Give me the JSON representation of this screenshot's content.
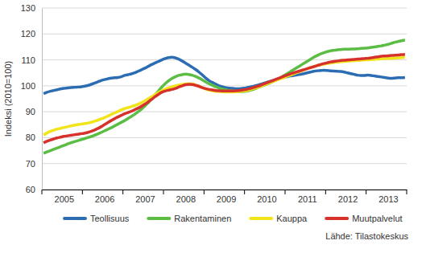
{
  "chart_data": {
    "type": "line",
    "y_label": "Indeksi (2010=100)",
    "source": "Lähde: Tilastokeskus",
    "categories": [
      null,
      null,
      null,
      null,
      null,
      null,
      "2005",
      null,
      null,
      null,
      null,
      null,
      null,
      null,
      null,
      null,
      null,
      null,
      "2006",
      null,
      null,
      null,
      null,
      null,
      null,
      null,
      null,
      null,
      null,
      null,
      "2007",
      null,
      null,
      null,
      null,
      null,
      null,
      null,
      null,
      null,
      null,
      null,
      "2008",
      null,
      null,
      null,
      null,
      null,
      null,
      null,
      null,
      null,
      null,
      null,
      "2009",
      null,
      null,
      null,
      null,
      null,
      null,
      null,
      null,
      null,
      null,
      null,
      "2010",
      null,
      null,
      null,
      null,
      null,
      null,
      null,
      null,
      null,
      null,
      null,
      "2011",
      null,
      null,
      null,
      null,
      null,
      null,
      null,
      null,
      null,
      null,
      null,
      "2012",
      null,
      null,
      null,
      null,
      null,
      null,
      null,
      null,
      null,
      null,
      null,
      "2013",
      null,
      null,
      null,
      null,
      null
    ],
    "ylim": [
      60,
      130
    ],
    "yticks": [
      60,
      70,
      80,
      90,
      100,
      110,
      120,
      130
    ],
    "grid": true,
    "legend": "bottom",
    "series": [
      {
        "name": "Teollisuus",
        "color": "#2b6cb3",
        "values": [
          97.0,
          97.5,
          97.9,
          98.2,
          98.5,
          98.8,
          99.0,
          99.2,
          99.3,
          99.4,
          99.5,
          99.6,
          99.8,
          100.1,
          100.5,
          101.0,
          101.5,
          102.0,
          102.4,
          102.7,
          103.0,
          103.1,
          103.2,
          103.5,
          104.0,
          104.3,
          104.6,
          105.0,
          105.6,
          106.2,
          106.8,
          107.5,
          108.2,
          108.8,
          109.4,
          110.0,
          110.5,
          110.9,
          111.0,
          110.8,
          110.3,
          109.6,
          108.8,
          108.0,
          107.2,
          106.3,
          105.3,
          104.2,
          103.0,
          102.0,
          101.3,
          100.6,
          100.0,
          99.6,
          99.3,
          99.1,
          99.0,
          98.9,
          98.9,
          99.0,
          99.2,
          99.5,
          99.8,
          100.1,
          100.5,
          100.9,
          101.3,
          101.7,
          102.1,
          102.5,
          102.9,
          103.2,
          103.5,
          103.8,
          104.0,
          104.2,
          104.4,
          104.7,
          105.0,
          105.3,
          105.6,
          105.8,
          105.9,
          106.0,
          105.9,
          105.8,
          105.7,
          105.6,
          105.5,
          105.3,
          105.0,
          104.7,
          104.4,
          104.1,
          104.0,
          104.0,
          104.1,
          104.0,
          103.8,
          103.6,
          103.4,
          103.2,
          103.0,
          102.9,
          103.0,
          103.1,
          103.1,
          103.2
        ]
      },
      {
        "name": "Rakentaminen",
        "color": "#5cbd44",
        "values": [
          74.0,
          74.5,
          75.0,
          75.5,
          76.0,
          76.5,
          77.0,
          77.5,
          78.0,
          78.4,
          78.8,
          79.2,
          79.6,
          80.0,
          80.4,
          80.9,
          81.4,
          82.0,
          82.6,
          83.2,
          83.8,
          84.5,
          85.2,
          85.9,
          86.6,
          87.4,
          88.2,
          89.0,
          90.0,
          91.0,
          92.2,
          93.5,
          95.0,
          96.5,
          98.0,
          99.5,
          100.8,
          101.9,
          102.8,
          103.5,
          104.0,
          104.3,
          104.5,
          104.4,
          104.1,
          103.6,
          103.0,
          102.3,
          101.5,
          100.8,
          100.2,
          99.6,
          99.1,
          98.7,
          98.4,
          98.2,
          98.0,
          97.9,
          97.8,
          97.8,
          97.9,
          98.2,
          98.6,
          99.1,
          99.6,
          100.1,
          100.6,
          101.1,
          101.7,
          102.3,
          103.0,
          103.8,
          104.6,
          105.4,
          106.2,
          107.0,
          107.8,
          108.6,
          109.4,
          110.2,
          111.0,
          111.7,
          112.3,
          112.8,
          113.2,
          113.5,
          113.7,
          113.9,
          114.0,
          114.1,
          114.1,
          114.2,
          114.2,
          114.3,
          114.4,
          114.5,
          114.6,
          114.8,
          115.0,
          115.2,
          115.4,
          115.7,
          116.0,
          116.4,
          116.8,
          117.1,
          117.4,
          117.6
        ]
      },
      {
        "name": "Kauppa",
        "color": "#f2e41a",
        "values": [
          81.0,
          81.8,
          82.4,
          82.9,
          83.3,
          83.6,
          83.9,
          84.2,
          84.5,
          84.8,
          85.0,
          85.2,
          85.4,
          85.6,
          85.9,
          86.3,
          86.7,
          87.2,
          87.7,
          88.3,
          88.9,
          89.5,
          90.1,
          90.7,
          91.2,
          91.6,
          92.0,
          92.4,
          92.9,
          93.5,
          94.2,
          95.0,
          95.8,
          96.6,
          97.4,
          98.1,
          98.7,
          99.2,
          99.6,
          100.0,
          100.3,
          100.5,
          100.7,
          100.8,
          100.7,
          100.4,
          99.9,
          99.3,
          98.8,
          98.4,
          98.1,
          97.9,
          97.8,
          97.7,
          97.6,
          97.6,
          97.6,
          97.7,
          97.8,
          98.0,
          98.2,
          98.5,
          98.9,
          99.3,
          99.7,
          100.2,
          100.7,
          101.2,
          101.7,
          102.2,
          102.7,
          103.1,
          103.6,
          104.1,
          104.6,
          105.1,
          105.6,
          106.1,
          106.6,
          107.0,
          107.4,
          107.8,
          108.1,
          108.4,
          108.6,
          108.8,
          109.0,
          109.2,
          109.3,
          109.4,
          109.5,
          109.6,
          109.7,
          109.8,
          109.9,
          110.0,
          110.0,
          110.1,
          110.2,
          110.3,
          110.4,
          110.5,
          110.6,
          110.6,
          110.7,
          110.8,
          110.9,
          111.0
        ]
      },
      {
        "name": "Muutpalvelut",
        "color": "#d6322b",
        "values": [
          78.0,
          78.6,
          79.1,
          79.5,
          79.9,
          80.2,
          80.5,
          80.7,
          80.9,
          81.1,
          81.3,
          81.5,
          81.7,
          82.0,
          82.4,
          82.9,
          83.5,
          84.2,
          85.0,
          85.8,
          86.6,
          87.3,
          88.0,
          88.6,
          89.2,
          89.7,
          90.2,
          90.8,
          91.4,
          92.1,
          92.9,
          93.8,
          94.8,
          95.8,
          96.7,
          97.5,
          98.0,
          98.3,
          98.6,
          99.0,
          99.5,
          100.0,
          100.4,
          100.6,
          100.5,
          100.2,
          99.8,
          99.3,
          98.9,
          98.6,
          98.4,
          98.2,
          98.1,
          98.0,
          98.0,
          98.0,
          98.0,
          98.1,
          98.2,
          98.4,
          98.6,
          98.9,
          99.3,
          99.7,
          100.1,
          100.6,
          101.1,
          101.6,
          102.1,
          102.6,
          103.1,
          103.6,
          104.1,
          104.6,
          105.0,
          105.4,
          105.8,
          106.2,
          106.6,
          107.0,
          107.4,
          107.8,
          108.2,
          108.6,
          108.9,
          109.2,
          109.4,
          109.6,
          109.8,
          109.9,
          110.0,
          110.1,
          110.2,
          110.3,
          110.4,
          110.5,
          110.6,
          110.8,
          111.0,
          111.2,
          111.4,
          111.5,
          111.6,
          111.7,
          111.8,
          111.9,
          112.0,
          112.1
        ]
      }
    ]
  }
}
